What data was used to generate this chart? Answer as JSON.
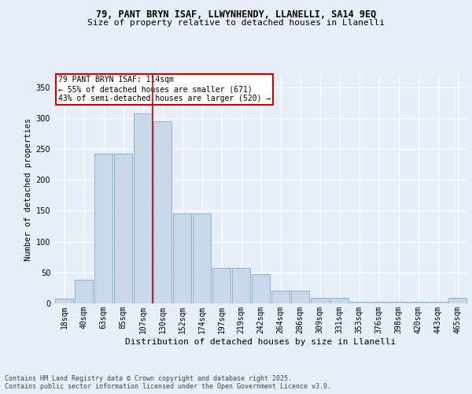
{
  "title1": "79, PANT BRYN ISAF, LLWYNHENDY, LLANELLI, SA14 9EQ",
  "title2": "Size of property relative to detached houses in Llanelli",
  "xlabel": "Distribution of detached houses by size in Llanelli",
  "ylabel": "Number of detached properties",
  "categories": [
    "18sqm",
    "40sqm",
    "63sqm",
    "85sqm",
    "107sqm",
    "130sqm",
    "152sqm",
    "174sqm",
    "197sqm",
    "219sqm",
    "242sqm",
    "264sqm",
    "286sqm",
    "309sqm",
    "331sqm",
    "353sqm",
    "376sqm",
    "398sqm",
    "420sqm",
    "443sqm",
    "465sqm"
  ],
  "values": [
    8,
    38,
    243,
    243,
    308,
    295,
    145,
    145,
    57,
    57,
    47,
    20,
    20,
    9,
    9,
    3,
    3,
    2,
    2,
    2,
    9
  ],
  "bar_color": "#c8d8ea",
  "bar_edge_color": "#7aabcc",
  "vline_x": 4.5,
  "vline_color": "#cc0000",
  "annotation_text": "79 PANT BRYN ISAF: 114sqm\n← 55% of detached houses are smaller (671)\n43% of semi-detached houses are larger (520) →",
  "annotation_box_color": "#ffffff",
  "annotation_box_edge": "#cc0000",
  "bg_color": "#e8eef8",
  "plot_bg_color": "#e8eef8",
  "grid_color": "#ffffff",
  "footer": "Contains HM Land Registry data © Crown copyright and database right 2025.\nContains public sector information licensed under the Open Government Licence v3.0.",
  "ylim": [
    0,
    370
  ],
  "yticks": [
    0,
    50,
    100,
    150,
    200,
    250,
    300,
    350
  ],
  "title1_fontsize": 8.5,
  "title2_fontsize": 8.0,
  "xlabel_fontsize": 8.0,
  "ylabel_fontsize": 7.5,
  "tick_fontsize": 7.0,
  "annot_fontsize": 7.0,
  "footer_fontsize": 6.0
}
